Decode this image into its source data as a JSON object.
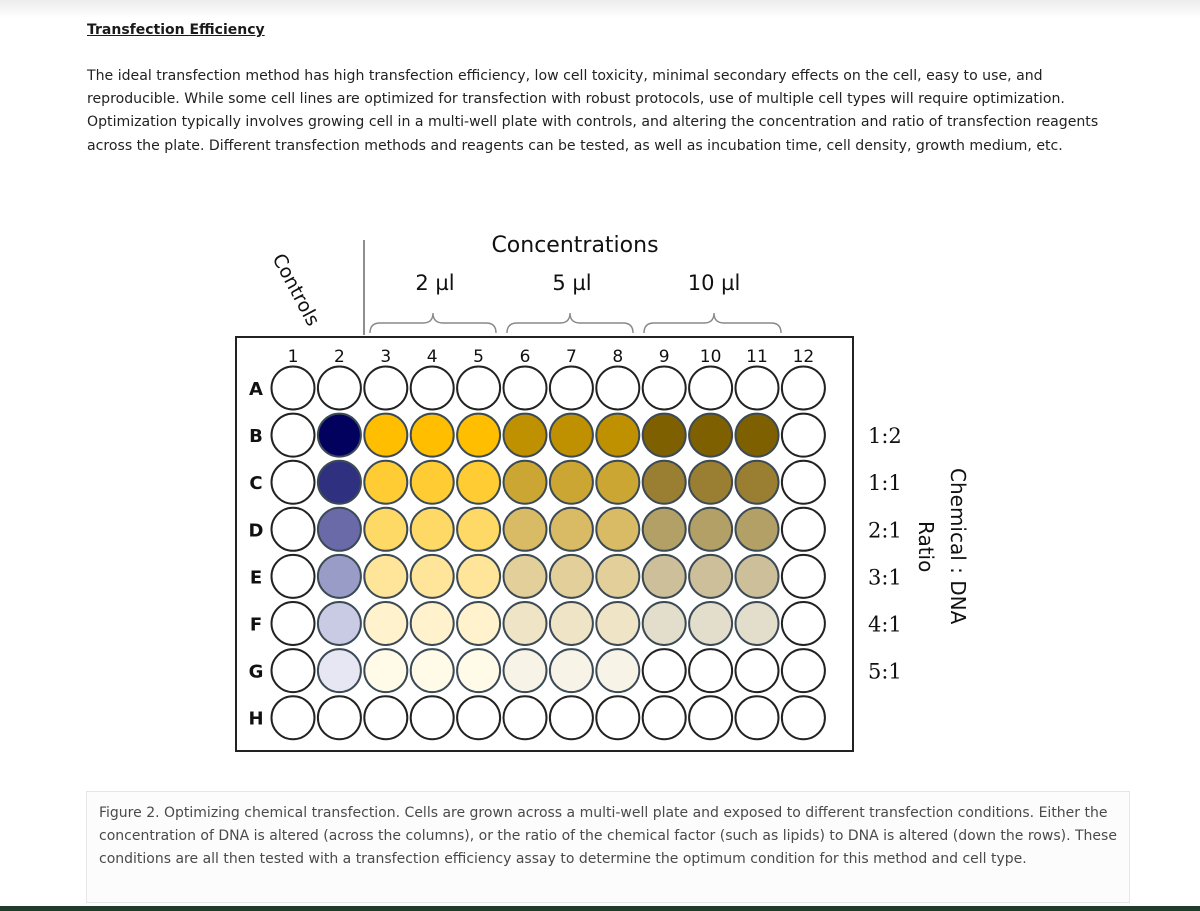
{
  "section": {
    "heading": "Transfection Efficiency",
    "intro": "The ideal transfection method has high transfection efficiency, low cell toxicity, minimal secondary effects on the cell, easy to use, and reproducible. While some cell lines are optimized for transfection with robust protocols, use of multiple cell types will require optimization. Optimization typically involves growing cell in a multi-well plate with controls, and altering the concentration and ratio of transfection reagents across the plate. Different transfection methods and reagents can be tested, as well as incubation time, cell density, growth medium, etc."
  },
  "diagram": {
    "concentrations_label": "Concentrations",
    "controls_label": "Controls",
    "concentration_groups": [
      "2 µl",
      "5 µl",
      "10 µl"
    ],
    "columns": [
      "1",
      "2",
      "3",
      "4",
      "5",
      "6",
      "7",
      "8",
      "9",
      "10",
      "11",
      "12"
    ],
    "rows": [
      "A",
      "B",
      "C",
      "D",
      "E",
      "F",
      "G",
      "H"
    ],
    "ratios": [
      "1:2",
      "1:1",
      "2:1",
      "3:1",
      "4:1",
      "5:1"
    ],
    "ratio_axis_line1": "Chemical : DNA",
    "ratio_axis_line2": "Ratio",
    "colors": {
      "empty": "#ffffff",
      "control": [
        "#02025e",
        "#2f307f",
        "#6a6aa8",
        "#9a9cc8",
        "#c9cbe4",
        "#e6e7f2"
      ],
      "c2ul": [
        "#ffbf00",
        "#ffcc33",
        "#ffd966",
        "#ffe599",
        "#fff2cc",
        "#fffbe8"
      ],
      "c5ul": [
        "#bf9000",
        "#cca633",
        "#d9bb66",
        "#e3cf99",
        "#efe4c6",
        "#f7f3e6"
      ],
      "c10ul": [
        "#7f6000",
        "#9a7f33",
        "#b2a066",
        "#ccbf99",
        "#e3ddcc",
        "#efede5"
      ]
    }
  },
  "caption": {
    "text": "Figure 2. Optimizing chemical transfection. Cells are grown across a multi-well plate and exposed to different transfection conditions. Either the concentration of DNA is altered (across the columns), or the ratio of the chemical factor (such as lipids) to DNA is altered (down the rows). These conditions are all then tested with a transfection efficiency assay to determine the optimum condition for this method and cell type."
  }
}
